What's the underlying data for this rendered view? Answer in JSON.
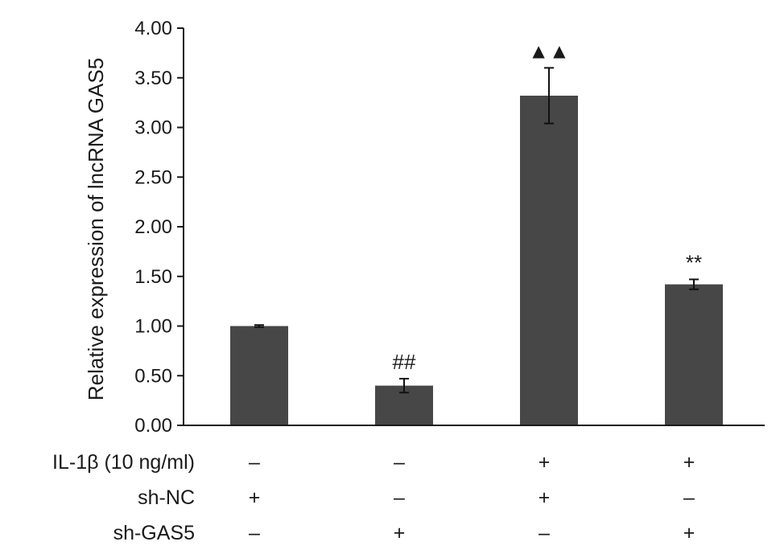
{
  "chart_data": {
    "type": "bar",
    "ylabel": "Relative expression of lncRNA GAS5",
    "ylim": [
      0,
      4
    ],
    "yticks": [
      "0.00",
      "0.50",
      "1.00",
      "1.50",
      "2.00",
      "2.50",
      "3.00",
      "3.50",
      "4.00"
    ],
    "bars": [
      {
        "value": 1.0,
        "error": 0.01,
        "annotation": ""
      },
      {
        "value": 0.4,
        "error": 0.07,
        "annotation": "##"
      },
      {
        "value": 3.32,
        "error": 0.28,
        "annotation": "▲▲"
      },
      {
        "value": 1.42,
        "error": 0.05,
        "annotation": "**"
      }
    ],
    "conditions": [
      {
        "label": "IL-1β (10 ng/ml)",
        "marks": [
          "–",
          "–",
          "+",
          "+"
        ]
      },
      {
        "label": "sh-NC",
        "marks": [
          "+",
          "–",
          "+",
          "–"
        ]
      },
      {
        "label": "sh-GAS5",
        "marks": [
          "–",
          "+",
          "–",
          "+"
        ]
      }
    ],
    "bar_color": "#474747",
    "grid": false,
    "legend": "none"
  }
}
